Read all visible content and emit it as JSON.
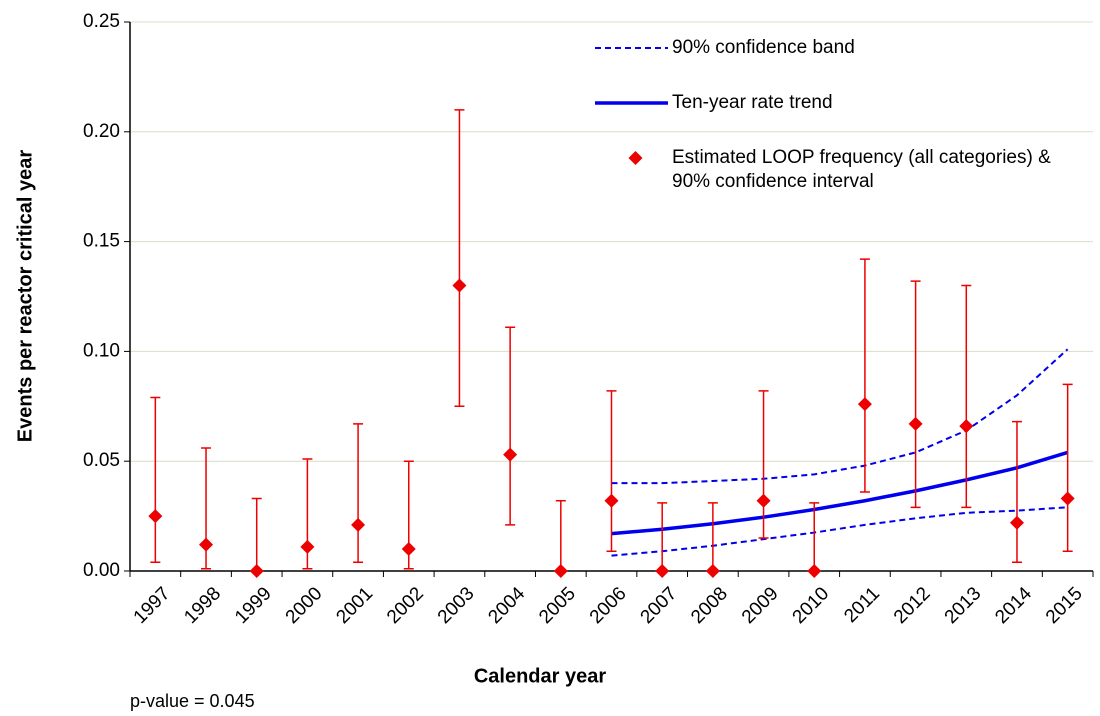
{
  "chart_data": {
    "type": "errorbar",
    "x_label": "Calendar year",
    "y_label": "Events per reactor critical year",
    "annotation": "p-value = 0.045",
    "categories": [
      "1997",
      "1998",
      "1999",
      "2000",
      "2001",
      "2002",
      "2003",
      "2004",
      "2005",
      "2006",
      "2007",
      "2008",
      "2009",
      "2010",
      "2011",
      "2012",
      "2013",
      "2014",
      "2015"
    ],
    "ylim": [
      0,
      0.25
    ],
    "yticks": [
      {
        "value": 0,
        "label": "0.00"
      },
      0.05,
      {
        "value": 0.1,
        "label": "0.10"
      },
      0.15,
      {
        "value": 0.2,
        "label": "0.20"
      },
      0.25
    ],
    "grid": true,
    "series": [
      {
        "name": "90% confidence band",
        "color": "#0000ee",
        "style": "dashed",
        "lower": [
          null,
          null,
          null,
          null,
          null,
          null,
          null,
          null,
          null,
          0.007,
          0.009,
          0.0115,
          0.0145,
          0.0175,
          0.021,
          0.024,
          0.0265,
          0.0275,
          0.029
        ],
        "upper": [
          null,
          null,
          null,
          null,
          null,
          null,
          null,
          null,
          null,
          0.04,
          0.04,
          0.041,
          0.042,
          0.044,
          0.048,
          0.054,
          0.064,
          0.08,
          0.101
        ]
      },
      {
        "name": "Ten-year rate trend",
        "color": "#0000ee",
        "style": "solid",
        "values": [
          null,
          null,
          null,
          null,
          null,
          null,
          null,
          null,
          null,
          0.017,
          0.019,
          0.0215,
          0.0245,
          0.028,
          0.032,
          0.0365,
          0.0415,
          0.047,
          0.054
        ]
      },
      {
        "name": "Estimated LOOP frequency (all categories) & 90% confidence interval",
        "color": "#ee0000",
        "style": "diamond",
        "values": [
          0.025,
          0.012,
          0,
          0.011,
          0.021,
          0.01,
          0.13,
          0.053,
          0,
          0.032,
          0,
          0,
          0.032,
          0,
          0.076,
          0.067,
          0.066,
          0.022,
          0.033
        ],
        "ci_lower": [
          0.004,
          0.001,
          0,
          0.001,
          0.004,
          0.001,
          0.075,
          0.021,
          0,
          0.009,
          0,
          0,
          0.015,
          0,
          0.036,
          0.029,
          0.029,
          0.004,
          0.009
        ],
        "ci_upper": [
          0.079,
          0.056,
          0.033,
          0.051,
          0.067,
          0.05,
          0.21,
          0.111,
          0.032,
          0.082,
          0.031,
          0.031,
          0.082,
          0.031,
          0.142,
          0.132,
          0.13,
          0.068,
          0.085
        ]
      }
    ]
  }
}
